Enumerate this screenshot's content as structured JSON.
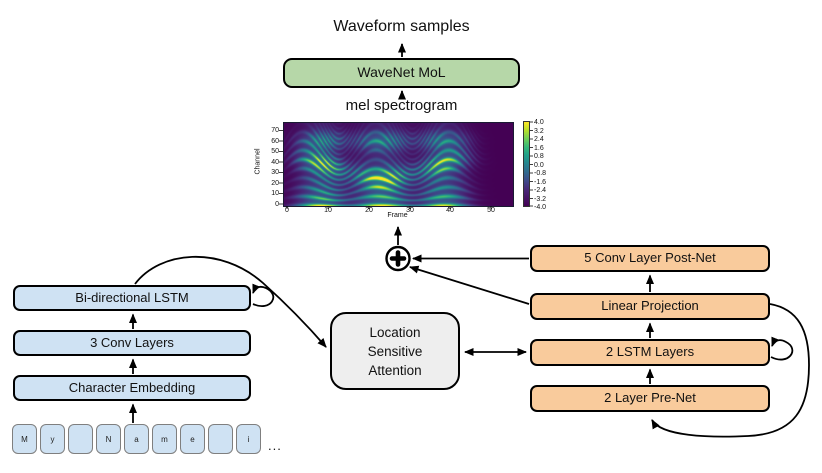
{
  "top": {
    "waveform_label": "Waveform samples",
    "wavenet_label": "WaveNet MoL",
    "mel_label": "mel spectrogram"
  },
  "encoder": {
    "bilstm": "Bi-directional LSTM",
    "conv": "3 Conv Layers",
    "embedding": "Character Embedding",
    "tokens": [
      "M",
      "y",
      "",
      "N",
      "a",
      "m",
      "e",
      "",
      "i"
    ],
    "ellipsis": "..."
  },
  "attention": {
    "lines": [
      "Location",
      "Sensitive",
      "Attention"
    ]
  },
  "decoder": {
    "postnet": "5 Conv Layer Post-Net",
    "linear_projection": "Linear Projection",
    "lstm": "2 LSTM Layers",
    "prenet": "2 Layer Pre-Net"
  },
  "colors": {
    "encoder_fill": "#cfe2f3",
    "decoder_fill": "#f9cb9c",
    "wavenet_fill": "#b6d7a8",
    "attention_fill": "#eeeeee",
    "token_fill": "#cfe2f3",
    "token_outline": "#7f7f7f",
    "outline": "#000000"
  },
  "chart_data": {
    "type": "heatmap",
    "title": "mel spectrogram",
    "xlabel": "Frame",
    "ylabel": "Channel",
    "x_ticks": [
      "0",
      "10",
      "20",
      "30",
      "40",
      "50"
    ],
    "y_ticks": [
      "0",
      "10",
      "20",
      "30",
      "40",
      "50",
      "60",
      "70"
    ],
    "xlim": [
      0,
      56
    ],
    "ylim": [
      0,
      80
    ],
    "clim": [
      -4.0,
      4.0
    ],
    "colormap": "viridis",
    "legend_position": "right-colorbar",
    "grid": false,
    "colorbar_ticks": [
      "4.0",
      "3.2",
      "2.4",
      "1.6",
      "0.8",
      "0.0",
      "-0.8",
      "-1.6",
      "-2.4",
      "-3.2",
      "-4.0"
    ]
  }
}
